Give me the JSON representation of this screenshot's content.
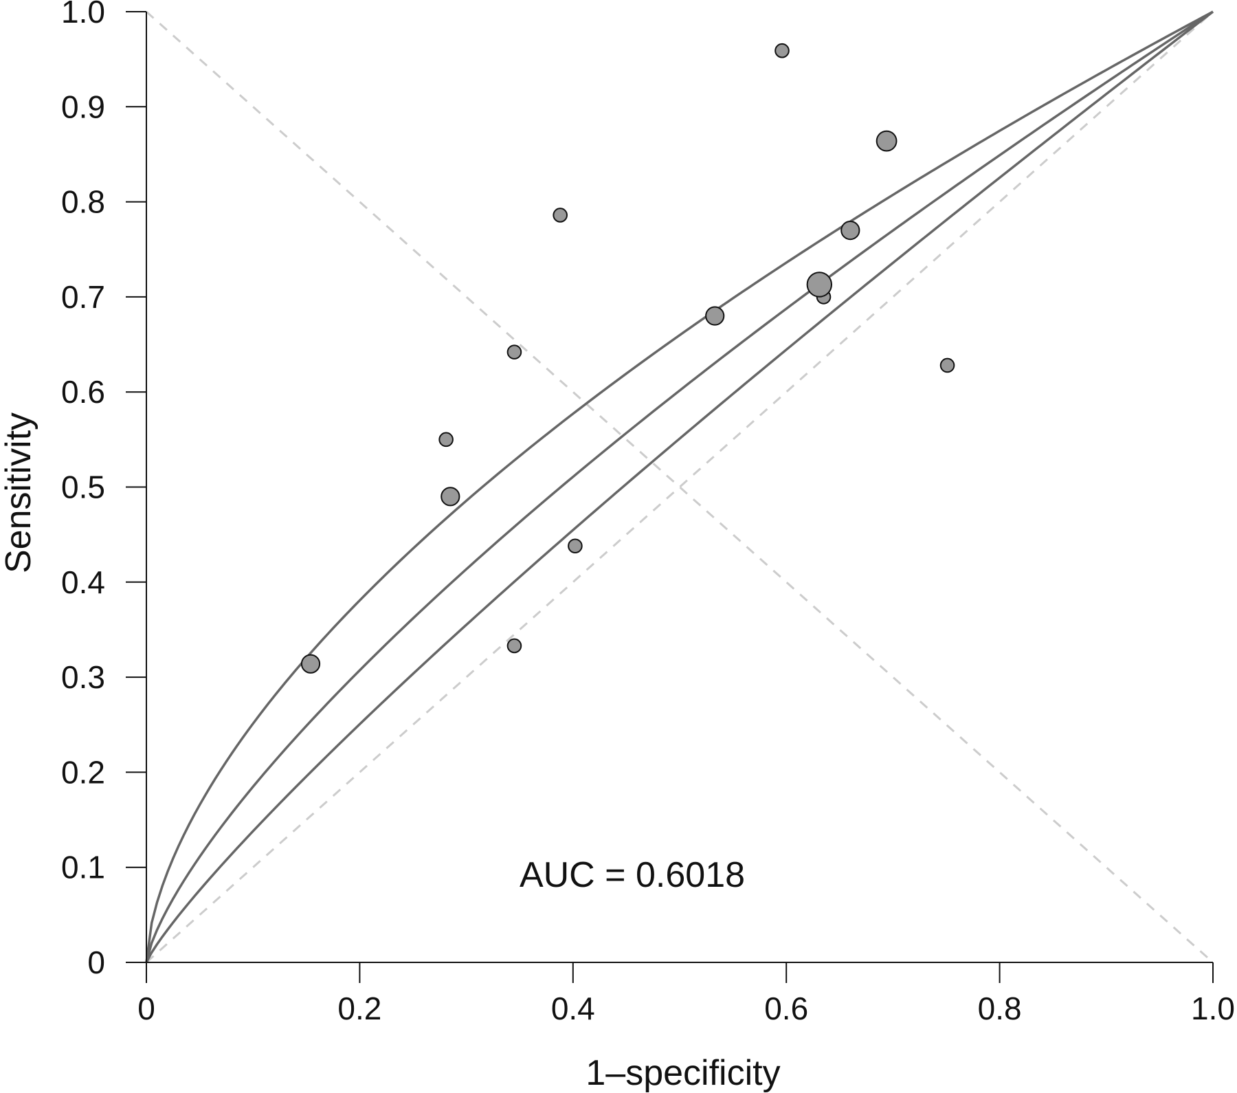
{
  "chart_data": {
    "type": "scatter",
    "title": "",
    "xlabel": "1–specificity",
    "ylabel": "Sensitivity",
    "xlim": [
      0,
      1
    ],
    "ylim": [
      0,
      1
    ],
    "x_ticks": [
      "0",
      "0.2",
      "0.4",
      "0.6",
      "0.8",
      "1.0"
    ],
    "y_ticks": [
      "0",
      "0.1",
      "0.2",
      "0.3",
      "0.4",
      "0.5",
      "0.6",
      "0.7",
      "0.8",
      "0.9",
      "1.0"
    ],
    "x_tick_values": [
      0,
      0.2,
      0.4,
      0.6,
      0.8,
      1.0
    ],
    "y_tick_values": [
      0,
      0.1,
      0.2,
      0.3,
      0.4,
      0.5,
      0.6,
      0.7,
      0.8,
      0.9,
      1.0
    ],
    "grid": false,
    "annotation": "AUC = 0.6018",
    "studies": [
      {
        "x": 0.154,
        "y": 0.314,
        "weight": 2
      },
      {
        "x": 0.281,
        "y": 0.55,
        "weight": 1
      },
      {
        "x": 0.285,
        "y": 0.49,
        "weight": 2
      },
      {
        "x": 0.345,
        "y": 0.642,
        "weight": 1
      },
      {
        "x": 0.345,
        "y": 0.333,
        "weight": 1
      },
      {
        "x": 0.388,
        "y": 0.786,
        "weight": 1
      },
      {
        "x": 0.402,
        "y": 0.438,
        "weight": 1
      },
      {
        "x": 0.533,
        "y": 0.68,
        "weight": 2
      },
      {
        "x": 0.596,
        "y": 0.959,
        "weight": 1
      },
      {
        "x": 0.635,
        "y": 0.7,
        "weight": 1
      },
      {
        "x": 0.631,
        "y": 0.713,
        "weight": 4
      },
      {
        "x": 0.66,
        "y": 0.77,
        "weight": 2
      },
      {
        "x": 0.694,
        "y": 0.864,
        "weight": 2.5
      },
      {
        "x": 0.751,
        "y": 0.628,
        "weight": 1
      }
    ],
    "curves": [
      {
        "role": "upper",
        "exponent": 0.6
      },
      {
        "role": "summary",
        "exponent": 0.7333
      },
      {
        "role": "lower",
        "exponent": 0.86
      }
    ],
    "reference_lines": [
      "chance diagonal",
      "sensitivity = specificity line"
    ],
    "colors": {
      "curve": "#666666",
      "reference": "#cccccc",
      "marker_fill": "#999999",
      "marker_stroke": "#111111",
      "axis": "#111111"
    }
  }
}
